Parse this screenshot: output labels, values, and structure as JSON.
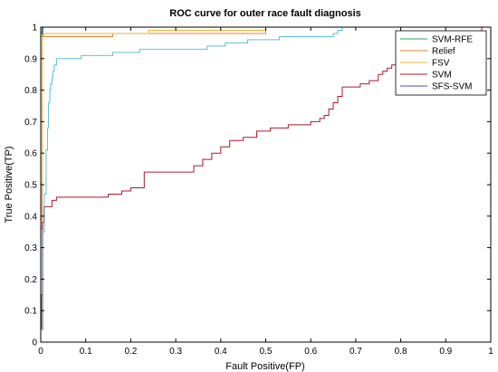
{
  "chart_data": {
    "type": "line",
    "title": "ROC curve for outer race fault diagnosis",
    "xlabel": "Fault Positive(FP)",
    "ylabel": "True Positive(TP)",
    "xlim": [
      0,
      1
    ],
    "ylim": [
      0,
      1
    ],
    "xticks": [
      "0",
      "0.1",
      "0.2",
      "0.3",
      "0.4",
      "0.5",
      "0.6",
      "0.7",
      "0.8",
      "0.9",
      "1"
    ],
    "yticks": [
      "0",
      "0.1",
      "0.2",
      "0.3",
      "0.4",
      "0.5",
      "0.6",
      "0.7",
      "0.8",
      "0.9",
      "1"
    ],
    "grid": false,
    "legend_position": "top-right",
    "series": [
      {
        "name": "SVM-RFE",
        "color": "#2ca25f",
        "points": [
          [
            0,
            0
          ],
          [
            0,
            0.97
          ],
          [
            0.005,
            0.97
          ],
          [
            0.005,
            1
          ],
          [
            1,
            1
          ]
        ]
      },
      {
        "name": "Relief",
        "color": "#e8823a",
        "points": [
          [
            0,
            0
          ],
          [
            0,
            0.36
          ],
          [
            0.003,
            0.36
          ],
          [
            0.003,
            0.97
          ],
          [
            0.16,
            0.97
          ],
          [
            0.16,
            0.98
          ],
          [
            0.5,
            0.98
          ],
          [
            0.5,
            1
          ],
          [
            1,
            1
          ]
        ]
      },
      {
        "name": "FSV",
        "color": "#f2b233",
        "points": [
          [
            0,
            0
          ],
          [
            0,
            0.5
          ],
          [
            0.003,
            0.5
          ],
          [
            0.003,
            0.98
          ],
          [
            0.24,
            0.98
          ],
          [
            0.24,
            0.99
          ],
          [
            0.5,
            0.99
          ],
          [
            0.5,
            1
          ],
          [
            1,
            1
          ]
        ]
      },
      {
        "name": "SVM",
        "color": "#b2182b",
        "points": [
          [
            0,
            0
          ],
          [
            0,
            0.04
          ],
          [
            0.002,
            0.04
          ],
          [
            0.002,
            0.15
          ],
          [
            0.004,
            0.15
          ],
          [
            0.004,
            0.38
          ],
          [
            0.007,
            0.38
          ],
          [
            0.007,
            0.43
          ],
          [
            0.025,
            0.43
          ],
          [
            0.025,
            0.45
          ],
          [
            0.035,
            0.45
          ],
          [
            0.035,
            0.46
          ],
          [
            0.15,
            0.46
          ],
          [
            0.15,
            0.47
          ],
          [
            0.18,
            0.47
          ],
          [
            0.18,
            0.48
          ],
          [
            0.2,
            0.48
          ],
          [
            0.2,
            0.49
          ],
          [
            0.23,
            0.49
          ],
          [
            0.23,
            0.54
          ],
          [
            0.34,
            0.54
          ],
          [
            0.34,
            0.56
          ],
          [
            0.36,
            0.56
          ],
          [
            0.36,
            0.58
          ],
          [
            0.38,
            0.58
          ],
          [
            0.38,
            0.6
          ],
          [
            0.4,
            0.6
          ],
          [
            0.4,
            0.62
          ],
          [
            0.42,
            0.62
          ],
          [
            0.42,
            0.64
          ],
          [
            0.45,
            0.64
          ],
          [
            0.45,
            0.65
          ],
          [
            0.48,
            0.65
          ],
          [
            0.48,
            0.67
          ],
          [
            0.51,
            0.67
          ],
          [
            0.51,
            0.68
          ],
          [
            0.55,
            0.68
          ],
          [
            0.55,
            0.69
          ],
          [
            0.6,
            0.69
          ],
          [
            0.6,
            0.7
          ],
          [
            0.62,
            0.7
          ],
          [
            0.62,
            0.71
          ],
          [
            0.63,
            0.71
          ],
          [
            0.63,
            0.72
          ],
          [
            0.64,
            0.72
          ],
          [
            0.64,
            0.74
          ],
          [
            0.65,
            0.74
          ],
          [
            0.65,
            0.76
          ],
          [
            0.66,
            0.76
          ],
          [
            0.66,
            0.78
          ],
          [
            0.67,
            0.78
          ],
          [
            0.67,
            0.81
          ],
          [
            0.71,
            0.81
          ],
          [
            0.71,
            0.82
          ],
          [
            0.73,
            0.82
          ],
          [
            0.73,
            0.83
          ],
          [
            0.75,
            0.83
          ],
          [
            0.75,
            0.85
          ],
          [
            0.76,
            0.85
          ],
          [
            0.76,
            0.86
          ],
          [
            0.77,
            0.86
          ],
          [
            0.77,
            0.87
          ],
          [
            0.78,
            0.87
          ],
          [
            0.78,
            0.88
          ],
          [
            0.8,
            0.88
          ],
          [
            0.8,
            0.89
          ],
          [
            0.82,
            0.89
          ],
          [
            0.82,
            0.9
          ],
          [
            0.84,
            0.9
          ],
          [
            0.84,
            0.91
          ],
          [
            0.86,
            0.91
          ],
          [
            0.86,
            0.92
          ],
          [
            0.88,
            0.92
          ],
          [
            0.88,
            0.93
          ],
          [
            0.9,
            0.93
          ],
          [
            0.9,
            0.94
          ],
          [
            0.92,
            0.94
          ],
          [
            0.92,
            0.95
          ],
          [
            0.94,
            0.95
          ],
          [
            0.94,
            0.97
          ],
          [
            0.96,
            0.97
          ],
          [
            0.96,
            0.98
          ],
          [
            0.98,
            0.98
          ],
          [
            0.98,
            1
          ],
          [
            1,
            1
          ]
        ]
      },
      {
        "name": "SFS-SVM",
        "color": "#5e3cc7",
        "points": [
          [
            0,
            0
          ],
          [
            0,
            0.98
          ],
          [
            0.003,
            0.98
          ],
          [
            0.003,
            1
          ],
          [
            1,
            1
          ]
        ]
      },
      {
        "color": "#5bc0de",
        "points": [
          [
            0,
            0
          ],
          [
            0,
            0.04
          ],
          [
            0.005,
            0.04
          ],
          [
            0.005,
            0.35
          ],
          [
            0.008,
            0.35
          ],
          [
            0.008,
            0.47
          ],
          [
            0.012,
            0.47
          ],
          [
            0.012,
            0.61
          ],
          [
            0.015,
            0.61
          ],
          [
            0.015,
            0.68
          ],
          [
            0.017,
            0.68
          ],
          [
            0.017,
            0.76
          ],
          [
            0.02,
            0.76
          ],
          [
            0.02,
            0.8
          ],
          [
            0.022,
            0.8
          ],
          [
            0.022,
            0.82
          ],
          [
            0.025,
            0.82
          ],
          [
            0.025,
            0.84
          ],
          [
            0.027,
            0.84
          ],
          [
            0.027,
            0.86
          ],
          [
            0.03,
            0.86
          ],
          [
            0.03,
            0.88
          ],
          [
            0.035,
            0.88
          ],
          [
            0.035,
            0.9
          ],
          [
            0.09,
            0.9
          ],
          [
            0.09,
            0.91
          ],
          [
            0.16,
            0.91
          ],
          [
            0.16,
            0.92
          ],
          [
            0.22,
            0.92
          ],
          [
            0.22,
            0.93
          ],
          [
            0.37,
            0.93
          ],
          [
            0.37,
            0.94
          ],
          [
            0.41,
            0.94
          ],
          [
            0.41,
            0.95
          ],
          [
            0.46,
            0.95
          ],
          [
            0.46,
            0.96
          ],
          [
            0.53,
            0.96
          ],
          [
            0.53,
            0.97
          ],
          [
            0.65,
            0.97
          ],
          [
            0.65,
            0.98
          ],
          [
            0.66,
            0.98
          ],
          [
            0.66,
            0.99
          ],
          [
            0.67,
            0.99
          ],
          [
            0.67,
            1
          ],
          [
            1,
            1
          ]
        ]
      }
    ]
  }
}
